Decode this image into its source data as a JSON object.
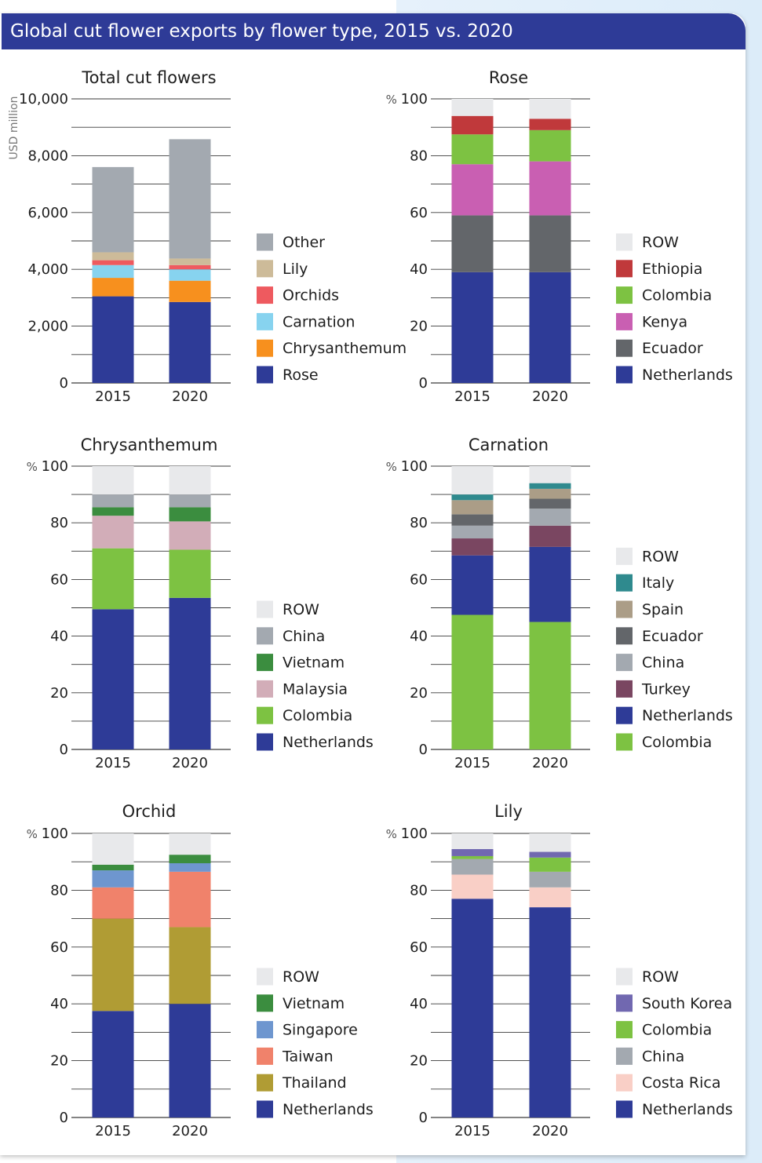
{
  "header": {
    "title": "Global cut flower exports by flower type, 2015 vs. 2020"
  },
  "chart_data": [
    {
      "type": "bar",
      "stacked": true,
      "title": "Total cut flowers",
      "ylabel": "USD million",
      "unit_prefix": "",
      "ylim": [
        0,
        10000
      ],
      "yticks": [
        0,
        2000,
        4000,
        6000,
        8000,
        10000
      ],
      "ytick_labels": [
        "0",
        "2,000",
        "4,000",
        "6,000",
        "8,000",
        "10,000"
      ],
      "categories": [
        "2015",
        "2020"
      ],
      "grid": true,
      "legend_position": "right",
      "series": [
        {
          "name": "Rose",
          "color": "#2e3b97",
          "values": [
            3050,
            2850
          ]
        },
        {
          "name": "Chrysanthemum",
          "color": "#f7901e",
          "values": [
            650,
            750
          ]
        },
        {
          "name": "Carnation",
          "color": "#87d3ef",
          "values": [
            450,
            400
          ]
        },
        {
          "name": "Orchids",
          "color": "#ee5a5f",
          "values": [
            170,
            150
          ]
        },
        {
          "name": "Lily",
          "color": "#cdbb99",
          "values": [
            280,
            230
          ]
        },
        {
          "name": "Other",
          "color": "#a3a9b0",
          "values": [
            3000,
            4200
          ]
        }
      ]
    },
    {
      "type": "bar",
      "stacked": true,
      "title": "Rose",
      "ylabel": "",
      "unit_prefix": "%",
      "ylim": [
        0,
        100
      ],
      "yticks": [
        0,
        20,
        40,
        60,
        80,
        100
      ],
      "ytick_labels": [
        "0",
        "20",
        "40",
        "60",
        "80",
        "100"
      ],
      "categories": [
        "2015",
        "2020"
      ],
      "grid": true,
      "legend_position": "right",
      "series": [
        {
          "name": "Netherlands",
          "color": "#2e3b97",
          "values": [
            39,
            39
          ]
        },
        {
          "name": "Ecuador",
          "color": "#63666a",
          "values": [
            20,
            20
          ]
        },
        {
          "name": "Kenya",
          "color": "#c95fb2",
          "values": [
            18,
            19
          ]
        },
        {
          "name": "Colombia",
          "color": "#7dc242",
          "values": [
            10.5,
            11
          ]
        },
        {
          "name": "Ethiopia",
          "color": "#c0393b",
          "values": [
            6.5,
            4
          ]
        },
        {
          "name": "ROW",
          "color": "#e8e9eb",
          "values": [
            6,
            7
          ]
        }
      ]
    },
    {
      "type": "bar",
      "stacked": true,
      "title": "Chrysanthemum",
      "ylabel": "",
      "unit_prefix": "%",
      "ylim": [
        0,
        100
      ],
      "yticks": [
        0,
        20,
        40,
        60,
        80,
        100
      ],
      "ytick_labels": [
        "0",
        "20",
        "40",
        "60",
        "80",
        "100"
      ],
      "categories": [
        "2015",
        "2020"
      ],
      "grid": true,
      "legend_position": "right",
      "series": [
        {
          "name": "Netherlands",
          "color": "#2e3b97",
          "values": [
            49.5,
            53.5
          ]
        },
        {
          "name": "Colombia",
          "color": "#7dc242",
          "values": [
            21.5,
            17
          ]
        },
        {
          "name": "Malaysia",
          "color": "#d2adb8",
          "values": [
            11.5,
            10
          ]
        },
        {
          "name": "Vietnam",
          "color": "#3b8d3f",
          "values": [
            3,
            5
          ]
        },
        {
          "name": "China",
          "color": "#a3a9b0",
          "values": [
            4.5,
            4.5
          ]
        },
        {
          "name": "ROW",
          "color": "#e8e9eb",
          "values": [
            10,
            10
          ]
        }
      ]
    },
    {
      "type": "bar",
      "stacked": true,
      "title": "Carnation",
      "ylabel": "",
      "unit_prefix": "%",
      "ylim": [
        0,
        100
      ],
      "yticks": [
        0,
        20,
        40,
        60,
        80,
        100
      ],
      "ytick_labels": [
        "0",
        "20",
        "40",
        "60",
        "80",
        "100"
      ],
      "categories": [
        "2015",
        "2020"
      ],
      "grid": true,
      "legend_position": "right",
      "series": [
        {
          "name": "Colombia",
          "color": "#7dc242",
          "values": [
            47.5,
            45
          ]
        },
        {
          "name": "Netherlands",
          "color": "#2e3b97",
          "values": [
            21,
            26.5
          ]
        },
        {
          "name": "Turkey",
          "color": "#7a4661",
          "values": [
            6,
            7.5
          ]
        },
        {
          "name": "China",
          "color": "#a3a9b0",
          "values": [
            4.5,
            6
          ]
        },
        {
          "name": "Ecuador",
          "color": "#63666a",
          "values": [
            4,
            3.5
          ]
        },
        {
          "name": "Spain",
          "color": "#ab9d87",
          "values": [
            5,
            3.5
          ]
        },
        {
          "name": "Italy",
          "color": "#2f8a8e",
          "values": [
            2,
            2
          ]
        },
        {
          "name": "ROW",
          "color": "#e8e9eb",
          "values": [
            10,
            6
          ]
        }
      ]
    },
    {
      "type": "bar",
      "stacked": true,
      "title": "Orchid",
      "ylabel": "",
      "unit_prefix": "%",
      "ylim": [
        0,
        100
      ],
      "yticks": [
        0,
        20,
        40,
        60,
        80,
        100
      ],
      "ytick_labels": [
        "0",
        "20",
        "40",
        "60",
        "80",
        "100"
      ],
      "categories": [
        "2015",
        "2020"
      ],
      "grid": true,
      "legend_position": "right",
      "series": [
        {
          "name": "Netherlands",
          "color": "#2e3b97",
          "values": [
            37.5,
            40
          ]
        },
        {
          "name": "Thailand",
          "color": "#b09c34",
          "values": [
            32.5,
            27
          ]
        },
        {
          "name": "Taiwan",
          "color": "#f0826b",
          "values": [
            11,
            19.5
          ]
        },
        {
          "name": "Singapore",
          "color": "#6e96cf",
          "values": [
            6,
            3
          ]
        },
        {
          "name": "Vietnam",
          "color": "#3b8d3f",
          "values": [
            2,
            3
          ]
        },
        {
          "name": "ROW",
          "color": "#e8e9eb",
          "values": [
            11,
            7.5
          ]
        }
      ]
    },
    {
      "type": "bar",
      "stacked": true,
      "title": "Lily",
      "ylabel": "",
      "unit_prefix": "%",
      "ylim": [
        0,
        100
      ],
      "yticks": [
        0,
        20,
        40,
        60,
        80,
        100
      ],
      "ytick_labels": [
        "0",
        "20",
        "40",
        "60",
        "80",
        "100"
      ],
      "categories": [
        "2015",
        "2020"
      ],
      "grid": true,
      "legend_position": "right",
      "series": [
        {
          "name": "Netherlands",
          "color": "#2e3b97",
          "values": [
            77,
            74
          ]
        },
        {
          "name": "Costa Rica",
          "color": "#f9cfc6",
          "values": [
            8.5,
            7
          ]
        },
        {
          "name": "China",
          "color": "#a3a9b0",
          "values": [
            5.5,
            5.5
          ]
        },
        {
          "name": "Colombia",
          "color": "#7dc242",
          "values": [
            1,
            5
          ]
        },
        {
          "name": "South Korea",
          "color": "#7168b0",
          "values": [
            2.5,
            2
          ]
        },
        {
          "name": "ROW",
          "color": "#e8e9eb",
          "values": [
            5.5,
            6.5
          ]
        }
      ]
    }
  ]
}
